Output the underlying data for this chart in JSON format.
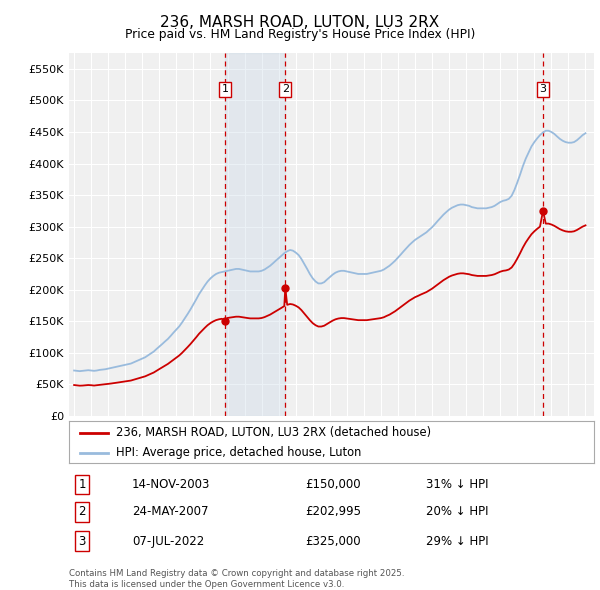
{
  "title": "236, MARSH ROAD, LUTON, LU3 2RX",
  "subtitle": "Price paid vs. HM Land Registry's House Price Index (HPI)",
  "legend_property": "236, MARSH ROAD, LUTON, LU3 2RX (detached house)",
  "legend_hpi": "HPI: Average price, detached house, Luton",
  "property_color": "#cc0000",
  "hpi_color": "#99bbdd",
  "sale_marker_color": "#cc0000",
  "vline_color": "#cc0000",
  "footnote": "Contains HM Land Registry data © Crown copyright and database right 2025.\nThis data is licensed under the Open Government Licence v3.0.",
  "sales": [
    {
      "num": 1,
      "date_label": "14-NOV-2003",
      "price": 150000,
      "pct": "31%",
      "date_x": 2003.87
    },
    {
      "num": 2,
      "date_label": "24-MAY-2007",
      "price": 202995,
      "pct": "20%",
      "date_x": 2007.39
    },
    {
      "num": 3,
      "date_label": "07-JUL-2022",
      "price": 325000,
      "pct": "29%",
      "date_x": 2022.51
    }
  ],
  "ylim": [
    0,
    575000
  ],
  "yticks": [
    0,
    50000,
    100000,
    150000,
    200000,
    250000,
    300000,
    350000,
    400000,
    450000,
    500000,
    550000
  ],
  "ytick_labels": [
    "£0",
    "£50K",
    "£100K",
    "£150K",
    "£200K",
    "£250K",
    "£300K",
    "£350K",
    "£400K",
    "£450K",
    "£500K",
    "£550K"
  ],
  "xlim_start": 1994.7,
  "xlim_end": 2025.5,
  "hpi_data": [
    [
      1995.0,
      72000
    ],
    [
      1995.17,
      71500
    ],
    [
      1995.33,
      71000
    ],
    [
      1995.5,
      71500
    ],
    [
      1995.67,
      72000
    ],
    [
      1995.83,
      72500
    ],
    [
      1996.0,
      72000
    ],
    [
      1996.17,
      71500
    ],
    [
      1996.33,
      72000
    ],
    [
      1996.5,
      73000
    ],
    [
      1996.67,
      73500
    ],
    [
      1996.83,
      74000
    ],
    [
      1997.0,
      75000
    ],
    [
      1997.17,
      76000
    ],
    [
      1997.33,
      77000
    ],
    [
      1997.5,
      78000
    ],
    [
      1997.67,
      79000
    ],
    [
      1997.83,
      80000
    ],
    [
      1998.0,
      81000
    ],
    [
      1998.17,
      82000
    ],
    [
      1998.33,
      83000
    ],
    [
      1998.5,
      85000
    ],
    [
      1998.67,
      87000
    ],
    [
      1998.83,
      89000
    ],
    [
      1999.0,
      91000
    ],
    [
      1999.17,
      93000
    ],
    [
      1999.33,
      96000
    ],
    [
      1999.5,
      99000
    ],
    [
      1999.67,
      102000
    ],
    [
      1999.83,
      106000
    ],
    [
      2000.0,
      110000
    ],
    [
      2000.17,
      114000
    ],
    [
      2000.33,
      118000
    ],
    [
      2000.5,
      122000
    ],
    [
      2000.67,
      127000
    ],
    [
      2000.83,
      132000
    ],
    [
      2001.0,
      137000
    ],
    [
      2001.17,
      142000
    ],
    [
      2001.33,
      148000
    ],
    [
      2001.5,
      155000
    ],
    [
      2001.67,
      162000
    ],
    [
      2001.83,
      169000
    ],
    [
      2002.0,
      177000
    ],
    [
      2002.17,
      185000
    ],
    [
      2002.33,
      193000
    ],
    [
      2002.5,
      200000
    ],
    [
      2002.67,
      207000
    ],
    [
      2002.83,
      213000
    ],
    [
      2003.0,
      218000
    ],
    [
      2003.17,
      222000
    ],
    [
      2003.33,
      225000
    ],
    [
      2003.5,
      227000
    ],
    [
      2003.67,
      228000
    ],
    [
      2003.83,
      229000
    ],
    [
      2004.0,
      230000
    ],
    [
      2004.17,
      231000
    ],
    [
      2004.33,
      232000
    ],
    [
      2004.5,
      233000
    ],
    [
      2004.67,
      233000
    ],
    [
      2004.83,
      232000
    ],
    [
      2005.0,
      231000
    ],
    [
      2005.17,
      230000
    ],
    [
      2005.33,
      229000
    ],
    [
      2005.5,
      229000
    ],
    [
      2005.67,
      229000
    ],
    [
      2005.83,
      229000
    ],
    [
      2006.0,
      230000
    ],
    [
      2006.17,
      232000
    ],
    [
      2006.33,
      235000
    ],
    [
      2006.5,
      238000
    ],
    [
      2006.67,
      242000
    ],
    [
      2006.83,
      246000
    ],
    [
      2007.0,
      250000
    ],
    [
      2007.17,
      254000
    ],
    [
      2007.33,
      258000
    ],
    [
      2007.5,
      261000
    ],
    [
      2007.67,
      263000
    ],
    [
      2007.83,
      262000
    ],
    [
      2008.0,
      259000
    ],
    [
      2008.17,
      255000
    ],
    [
      2008.33,
      249000
    ],
    [
      2008.5,
      241000
    ],
    [
      2008.67,
      233000
    ],
    [
      2008.83,
      225000
    ],
    [
      2009.0,
      218000
    ],
    [
      2009.17,
      213000
    ],
    [
      2009.33,
      210000
    ],
    [
      2009.5,
      210000
    ],
    [
      2009.67,
      212000
    ],
    [
      2009.83,
      216000
    ],
    [
      2010.0,
      220000
    ],
    [
      2010.17,
      224000
    ],
    [
      2010.33,
      227000
    ],
    [
      2010.5,
      229000
    ],
    [
      2010.67,
      230000
    ],
    [
      2010.83,
      230000
    ],
    [
      2011.0,
      229000
    ],
    [
      2011.17,
      228000
    ],
    [
      2011.33,
      227000
    ],
    [
      2011.5,
      226000
    ],
    [
      2011.67,
      225000
    ],
    [
      2011.83,
      225000
    ],
    [
      2012.0,
      225000
    ],
    [
      2012.17,
      225000
    ],
    [
      2012.33,
      226000
    ],
    [
      2012.5,
      227000
    ],
    [
      2012.67,
      228000
    ],
    [
      2012.83,
      229000
    ],
    [
      2013.0,
      230000
    ],
    [
      2013.17,
      232000
    ],
    [
      2013.33,
      235000
    ],
    [
      2013.5,
      238000
    ],
    [
      2013.67,
      242000
    ],
    [
      2013.83,
      246000
    ],
    [
      2014.0,
      251000
    ],
    [
      2014.17,
      256000
    ],
    [
      2014.33,
      261000
    ],
    [
      2014.5,
      266000
    ],
    [
      2014.67,
      271000
    ],
    [
      2014.83,
      275000
    ],
    [
      2015.0,
      279000
    ],
    [
      2015.17,
      282000
    ],
    [
      2015.33,
      285000
    ],
    [
      2015.5,
      288000
    ],
    [
      2015.67,
      291000
    ],
    [
      2015.83,
      295000
    ],
    [
      2016.0,
      299000
    ],
    [
      2016.17,
      304000
    ],
    [
      2016.33,
      309000
    ],
    [
      2016.5,
      314000
    ],
    [
      2016.67,
      319000
    ],
    [
      2016.83,
      323000
    ],
    [
      2017.0,
      327000
    ],
    [
      2017.17,
      330000
    ],
    [
      2017.33,
      332000
    ],
    [
      2017.5,
      334000
    ],
    [
      2017.67,
      335000
    ],
    [
      2017.83,
      335000
    ],
    [
      2018.0,
      334000
    ],
    [
      2018.17,
      333000
    ],
    [
      2018.33,
      331000
    ],
    [
      2018.5,
      330000
    ],
    [
      2018.67,
      329000
    ],
    [
      2018.83,
      329000
    ],
    [
      2019.0,
      329000
    ],
    [
      2019.17,
      329000
    ],
    [
      2019.33,
      330000
    ],
    [
      2019.5,
      331000
    ],
    [
      2019.67,
      333000
    ],
    [
      2019.83,
      336000
    ],
    [
      2020.0,
      339000
    ],
    [
      2020.17,
      341000
    ],
    [
      2020.33,
      342000
    ],
    [
      2020.5,
      344000
    ],
    [
      2020.67,
      349000
    ],
    [
      2020.83,
      358000
    ],
    [
      2021.0,
      370000
    ],
    [
      2021.17,
      383000
    ],
    [
      2021.33,
      396000
    ],
    [
      2021.5,
      408000
    ],
    [
      2021.67,
      418000
    ],
    [
      2021.83,
      427000
    ],
    [
      2022.0,
      434000
    ],
    [
      2022.17,
      440000
    ],
    [
      2022.33,
      445000
    ],
    [
      2022.5,
      449000
    ],
    [
      2022.67,
      452000
    ],
    [
      2022.83,
      452000
    ],
    [
      2023.0,
      450000
    ],
    [
      2023.17,
      447000
    ],
    [
      2023.33,
      443000
    ],
    [
      2023.5,
      439000
    ],
    [
      2023.67,
      436000
    ],
    [
      2023.83,
      434000
    ],
    [
      2024.0,
      433000
    ],
    [
      2024.17,
      433000
    ],
    [
      2024.33,
      434000
    ],
    [
      2024.5,
      437000
    ],
    [
      2024.67,
      441000
    ],
    [
      2024.83,
      445000
    ],
    [
      2025.0,
      448000
    ]
  ],
  "property_data": [
    [
      1995.0,
      49000
    ],
    [
      1995.17,
      48500
    ],
    [
      1995.33,
      48000
    ],
    [
      1995.5,
      48200
    ],
    [
      1995.67,
      48700
    ],
    [
      1995.83,
      49000
    ],
    [
      1996.0,
      48700
    ],
    [
      1996.17,
      48200
    ],
    [
      1996.33,
      48700
    ],
    [
      1996.5,
      49400
    ],
    [
      1996.67,
      49800
    ],
    [
      1996.83,
      50100
    ],
    [
      1997.0,
      50700
    ],
    [
      1997.17,
      51400
    ],
    [
      1997.33,
      52100
    ],
    [
      1997.5,
      52700
    ],
    [
      1997.67,
      53400
    ],
    [
      1997.83,
      54100
    ],
    [
      1998.0,
      54700
    ],
    [
      1998.17,
      55400
    ],
    [
      1998.33,
      56100
    ],
    [
      1998.5,
      57400
    ],
    [
      1998.67,
      58800
    ],
    [
      1998.83,
      60100
    ],
    [
      1999.0,
      61500
    ],
    [
      1999.17,
      62800
    ],
    [
      1999.33,
      64800
    ],
    [
      1999.5,
      66800
    ],
    [
      1999.67,
      68800
    ],
    [
      1999.83,
      71500
    ],
    [
      2000.0,
      74300
    ],
    [
      2000.17,
      77000
    ],
    [
      2000.33,
      79700
    ],
    [
      2000.5,
      82400
    ],
    [
      2000.67,
      85800
    ],
    [
      2000.83,
      89100
    ],
    [
      2001.0,
      92500
    ],
    [
      2001.17,
      95900
    ],
    [
      2001.33,
      99900
    ],
    [
      2001.5,
      104600
    ],
    [
      2001.67,
      109400
    ],
    [
      2001.83,
      114100
    ],
    [
      2002.0,
      119500
    ],
    [
      2002.17,
      124900
    ],
    [
      2002.33,
      130300
    ],
    [
      2002.5,
      135000
    ],
    [
      2002.67,
      139700
    ],
    [
      2002.83,
      143800
    ],
    [
      2003.0,
      147200
    ],
    [
      2003.17,
      149900
    ],
    [
      2003.33,
      151900
    ],
    [
      2003.5,
      153200
    ],
    [
      2003.67,
      154000
    ],
    [
      2003.87,
      150000
    ],
    [
      2004.0,
      155300
    ],
    [
      2004.17,
      156000
    ],
    [
      2004.33,
      156600
    ],
    [
      2004.5,
      157300
    ],
    [
      2004.67,
      157300
    ],
    [
      2004.83,
      156600
    ],
    [
      2005.0,
      155900
    ],
    [
      2005.17,
      155200
    ],
    [
      2005.33,
      154600
    ],
    [
      2005.5,
      154600
    ],
    [
      2005.67,
      154600
    ],
    [
      2005.83,
      154600
    ],
    [
      2006.0,
      155200
    ],
    [
      2006.17,
      156600
    ],
    [
      2006.33,
      158600
    ],
    [
      2006.5,
      160600
    ],
    [
      2006.67,
      163300
    ],
    [
      2006.83,
      166000
    ],
    [
      2007.0,
      168700
    ],
    [
      2007.17,
      171400
    ],
    [
      2007.33,
      174100
    ],
    [
      2007.39,
      202995
    ],
    [
      2007.5,
      176100
    ],
    [
      2007.67,
      177400
    ],
    [
      2007.83,
      176700
    ],
    [
      2008.0,
      174700
    ],
    [
      2008.17,
      172000
    ],
    [
      2008.33,
      167900
    ],
    [
      2008.5,
      162500
    ],
    [
      2008.67,
      157100
    ],
    [
      2008.83,
      151800
    ],
    [
      2009.0,
      147000
    ],
    [
      2009.17,
      143700
    ],
    [
      2009.33,
      141700
    ],
    [
      2009.5,
      141700
    ],
    [
      2009.67,
      143000
    ],
    [
      2009.83,
      145700
    ],
    [
      2010.0,
      148400
    ],
    [
      2010.17,
      151100
    ],
    [
      2010.33,
      153100
    ],
    [
      2010.5,
      154400
    ],
    [
      2010.67,
      155100
    ],
    [
      2010.83,
      155100
    ],
    [
      2011.0,
      154400
    ],
    [
      2011.17,
      153700
    ],
    [
      2011.33,
      153100
    ],
    [
      2011.5,
      152400
    ],
    [
      2011.67,
      151800
    ],
    [
      2011.83,
      151800
    ],
    [
      2012.0,
      151800
    ],
    [
      2012.17,
      151800
    ],
    [
      2012.33,
      152400
    ],
    [
      2012.5,
      153100
    ],
    [
      2012.67,
      153700
    ],
    [
      2012.83,
      154400
    ],
    [
      2013.0,
      155100
    ],
    [
      2013.17,
      156400
    ],
    [
      2013.33,
      158500
    ],
    [
      2013.5,
      160500
    ],
    [
      2013.67,
      163200
    ],
    [
      2013.83,
      165900
    ],
    [
      2014.0,
      169300
    ],
    [
      2014.17,
      172700
    ],
    [
      2014.33,
      176100
    ],
    [
      2014.5,
      179400
    ],
    [
      2014.67,
      182800
    ],
    [
      2014.83,
      185500
    ],
    [
      2015.0,
      188200
    ],
    [
      2015.17,
      190200
    ],
    [
      2015.33,
      192300
    ],
    [
      2015.5,
      194300
    ],
    [
      2015.67,
      196300
    ],
    [
      2015.83,
      199000
    ],
    [
      2016.0,
      201700
    ],
    [
      2016.17,
      205100
    ],
    [
      2016.33,
      208500
    ],
    [
      2016.5,
      211800
    ],
    [
      2016.67,
      215200
    ],
    [
      2016.83,
      217900
    ],
    [
      2017.0,
      220600
    ],
    [
      2017.17,
      222600
    ],
    [
      2017.33,
      223900
    ],
    [
      2017.5,
      225300
    ],
    [
      2017.67,
      226000
    ],
    [
      2017.83,
      226000
    ],
    [
      2018.0,
      225300
    ],
    [
      2018.17,
      224600
    ],
    [
      2018.33,
      223300
    ],
    [
      2018.5,
      222600
    ],
    [
      2018.67,
      221900
    ],
    [
      2018.83,
      221900
    ],
    [
      2019.0,
      221900
    ],
    [
      2019.17,
      221900
    ],
    [
      2019.33,
      222600
    ],
    [
      2019.5,
      223300
    ],
    [
      2019.67,
      224600
    ],
    [
      2019.83,
      226600
    ],
    [
      2020.0,
      228600
    ],
    [
      2020.17,
      230000
    ],
    [
      2020.33,
      230600
    ],
    [
      2020.5,
      232000
    ],
    [
      2020.67,
      235300
    ],
    [
      2020.83,
      241400
    ],
    [
      2021.0,
      249400
    ],
    [
      2021.17,
      258200
    ],
    [
      2021.33,
      267000
    ],
    [
      2021.5,
      275100
    ],
    [
      2021.67,
      281900
    ],
    [
      2021.83,
      287900
    ],
    [
      2022.0,
      292600
    ],
    [
      2022.17,
      296600
    ],
    [
      2022.33,
      300000
    ],
    [
      2022.51,
      325000
    ],
    [
      2022.67,
      304800
    ],
    [
      2022.83,
      304800
    ],
    [
      2023.0,
      303400
    ],
    [
      2023.17,
      301300
    ],
    [
      2023.33,
      298700
    ],
    [
      2023.5,
      296000
    ],
    [
      2023.67,
      294000
    ],
    [
      2023.83,
      292600
    ],
    [
      2024.0,
      291900
    ],
    [
      2024.17,
      291900
    ],
    [
      2024.33,
      292600
    ],
    [
      2024.5,
      294700
    ],
    [
      2024.67,
      297400
    ],
    [
      2024.83,
      300000
    ],
    [
      2025.0,
      302000
    ]
  ]
}
